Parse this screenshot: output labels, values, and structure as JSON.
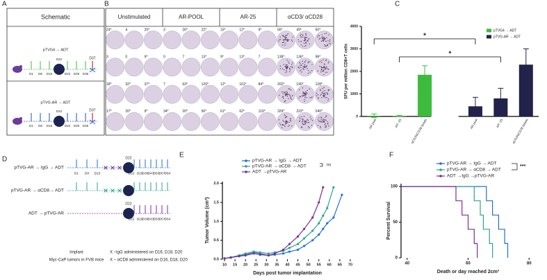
{
  "panel_letters": [
    "A",
    "B",
    "C",
    "D",
    "E",
    "F"
  ],
  "schematic": {
    "title": "Schematic",
    "adt_label": "ADT",
    "rows": [
      {
        "label": "pTVG4 → ADT",
        "color": "#3dbb3d",
        "days": [
          "D1",
          "D8",
          "D15",
          "D22",
          "D22",
          "D29",
          "D36"
        ],
        "end": "D37"
      },
      {
        "label": "pTVG-AR → ADT",
        "color": "#1f4fa8",
        "days": [
          "D1",
          "D8",
          "D15",
          "D22",
          "D22",
          "D29",
          "D36"
        ],
        "end": "D37"
      }
    ]
  },
  "elispot": {
    "headers": [
      "Unstimulated",
      "AR-POOL",
      "AR-25",
      "αCD3/ αCD28"
    ],
    "rows": [
      [
        "24*",
        "4",
        "20*",
        "3",
        "26*",
        "22*",
        "15*",
        "12*",
        "9*",
        "56*",
        "49*",
        "50*"
      ],
      [
        "3",
        "0",
        "9*",
        "0",
        "7",
        "13*",
        "9*",
        "13*",
        "7",
        "138*",
        "136*",
        "98*"
      ],
      [
        "18*",
        "32*",
        "37*",
        "7",
        "63*",
        "120*",
        "12*",
        "101*",
        "84*",
        "202*",
        "190*",
        "128*"
      ],
      [
        "17*",
        "20*",
        "9*",
        "34*",
        "20*",
        "56*",
        "61*",
        "62*",
        "119*",
        "329*",
        "222*",
        "240*"
      ]
    ]
  },
  "timeline": {
    "rows": [
      {
        "label": "pTVG-AR → IgG → ADT",
        "color": "#1f6fd1"
      },
      {
        "label": "pTVG-AR → αCD8→ ADT",
        "color": "#2aa58a"
      },
      {
        "label": "ADT → pTVG-AR",
        "color": "#7a2c9c"
      }
    ],
    "prime_days": [
      "D1",
      "D8",
      "D15"
    ],
    "adt_day": "D22",
    "adt_label": "ADT",
    "boost_days": [
      "D22",
      "D29",
      "D36",
      "D43",
      "D50",
      "D57",
      "D64"
    ],
    "notes": [
      "Implant",
      "Myc-CaP tumors in FVB mice"
    ],
    "legend": [
      {
        "text": "X –IgG administered on D16, D18, D20",
        "color": "#7a2c9c"
      },
      {
        "text": "X – αCD8 administered on D16, D18, D20",
        "color": "#2aa58a"
      }
    ]
  },
  "chart_data": [
    {
      "type": "bar",
      "y_label": "SFU per million CD8+T cells",
      "categories": [
        "AR pool",
        "AR -25",
        "αCD3/αCD28 beads",
        null,
        "AR pool",
        "AR -25",
        "αCD3/αCD28 beads"
      ],
      "series": [
        {
          "name": "pTVG4 → ADT",
          "color": "#3dbb3d",
          "values": [
            30,
            20,
            1850,
            null,
            null,
            null,
            null
          ],
          "errors": [
            80,
            30,
            400,
            null,
            null,
            null,
            null
          ]
        },
        {
          "name": "pTVG-AR → ADT",
          "color": "#23224a",
          "values": [
            null,
            null,
            null,
            null,
            450,
            800,
            2300
          ],
          "errors": [
            null,
            null,
            null,
            null,
            400,
            450,
            700
          ]
        }
      ],
      "ylim": [
        0,
        4000
      ],
      "yticks": [
        0,
        1000,
        2000,
        3000,
        4000
      ],
      "annotations": [
        "*",
        "*"
      ],
      "legend": "upper right"
    },
    {
      "type": "line",
      "y_label": "Tumor Volume (cm³)",
      "x_label": "Days post tumor implantation",
      "x": [
        10,
        13,
        17,
        20,
        24,
        27,
        31,
        34,
        38,
        41,
        45,
        48,
        52,
        55,
        57,
        59,
        62,
        66
      ],
      "series": [
        {
          "name": "pTVG-AR → IgG → ADT",
          "color": "#1f6fd1",
          "values": [
            0.02,
            0.05,
            0.08,
            0.12,
            0.18,
            0.15,
            0.1,
            0.12,
            0.15,
            0.2,
            0.25,
            0.35,
            0.5,
            0.65,
            0.8,
            0.95,
            1.1,
            1.7
          ]
        },
        {
          "name": "pTVG-AR → αCD8 → ADT",
          "color": "#2aa58a",
          "values": [
            0.02,
            0.05,
            0.1,
            0.15,
            0.2,
            0.18,
            0.15,
            0.18,
            0.22,
            0.3,
            0.4,
            0.55,
            0.75,
            0.95,
            1.15,
            1.35,
            1.9,
            null
          ]
        },
        {
          "name": "ADT →pTVG-AR",
          "color": "#7a2c9c",
          "values": [
            0.02,
            0.04,
            0.08,
            0.1,
            0.15,
            0.12,
            0.1,
            0.15,
            0.25,
            0.4,
            0.6,
            0.8,
            1.1,
            1.5,
            1.9,
            null,
            null,
            null
          ]
        }
      ],
      "xlim": [
        9,
        71
      ],
      "xticks": [
        10,
        15,
        20,
        25,
        30,
        35,
        40,
        45,
        50,
        55,
        60,
        65,
        70
      ],
      "ylim": [
        0,
        2.05
      ],
      "yticks": [
        {
          "value": 0,
          "label": "0.0"
        },
        0.5,
        {
          "value": 1,
          "label": "1.0"
        },
        1.5,
        {
          "value": 2,
          "label": "2.0"
        }
      ],
      "annotation": "ns",
      "legend": "upper left"
    },
    {
      "type": "step",
      "y_label": "Percent Survival",
      "x_label": "Death or day reached 2cm³",
      "series": [
        {
          "name": "pTVG-AR → IgG → ADT",
          "color": "#1f6fd1",
          "x": [
            38,
            66,
            68,
            70,
            72,
            73
          ],
          "values": [
            100,
            80,
            60,
            40,
            20,
            0
          ]
        },
        {
          "name": "pTVG-AR → αCD8 → ADT",
          "color": "#2aa58a",
          "x": [
            38,
            62,
            64,
            65,
            67,
            68
          ],
          "values": [
            100,
            80,
            60,
            40,
            20,
            0
          ]
        },
        {
          "name": "ADT →IgG →pTVG-AR",
          "color": "#7a2c9c",
          "x": [
            38,
            56,
            58,
            60,
            62,
            63
          ],
          "values": [
            100,
            80,
            60,
            40,
            20,
            0
          ]
        }
      ],
      "xlim": [
        38,
        82
      ],
      "xticks": [
        40,
        60,
        80
      ],
      "ylim": [
        0,
        104
      ],
      "yticks": [
        0,
        50,
        100
      ],
      "annotation": "***",
      "legend": "upper right"
    }
  ]
}
